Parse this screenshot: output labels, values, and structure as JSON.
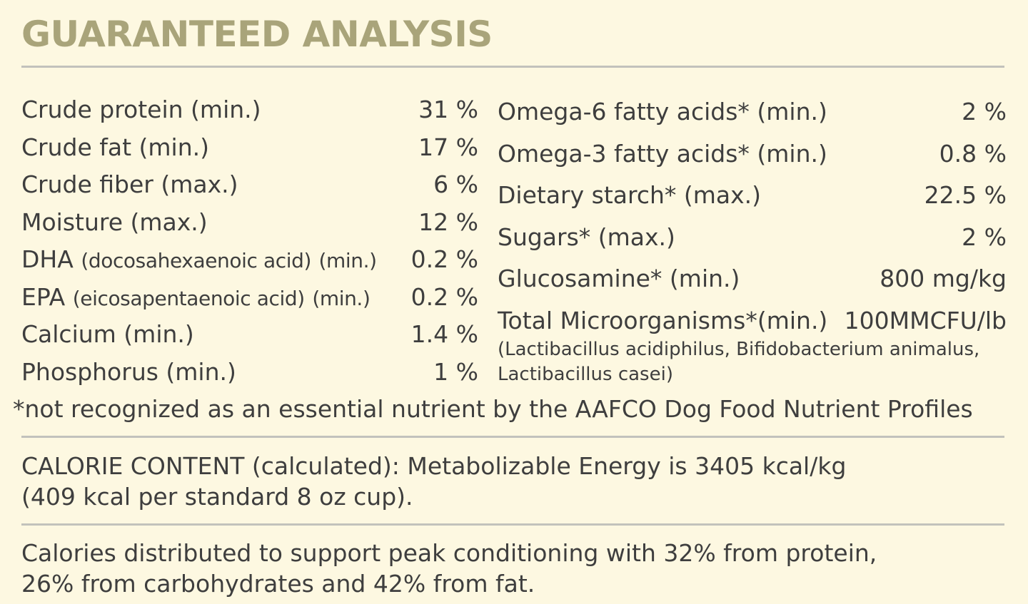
{
  "title": "GUARANTEED ANALYSIS",
  "left_rows": [
    {
      "label": "Crude protein (min.)",
      "value": "31 %"
    },
    {
      "label": "Crude fat (min.)",
      "value": "17 %"
    },
    {
      "label": "Crude fiber (max.)",
      "value": "6 %"
    },
    {
      "label": "Moisture (max.)",
      "value": "12 %"
    },
    {
      "label": "DHA",
      "detail": "(docosahexaenoic acid)",
      "qualifier": "(min.)",
      "value": "0.2 %"
    },
    {
      "label": "EPA",
      "detail": "(eicosapentaenoic acid)",
      "qualifier": "(min.)",
      "value": "0.2 %"
    },
    {
      "label": "Calcium (min.)",
      "value": "1.4 %"
    },
    {
      "label": "Phosphorus (min.)",
      "value": "1 %"
    }
  ],
  "right_rows": [
    {
      "label": "Omega-6 fatty acids* (min.)",
      "value": "2 %"
    },
    {
      "label": "Omega-3 fatty acids* (min.)",
      "value": "0.8 %"
    },
    {
      "label": "Dietary starch* (max.)",
      "value": "22.5 %"
    },
    {
      "label": "Sugars* (max.)",
      "value": "2 %"
    },
    {
      "label": "Glucosamine* (min.)",
      "value": "800 mg/kg"
    },
    {
      "label": "Total Microorganisms*(min.)",
      "value": "100MMCFU/lb"
    }
  ],
  "microorganisms_note": [
    "(Lactibacillus acidiphilus, Bifidobacterium animalus,",
    "Lactibacillus casei)"
  ],
  "footnote": "*not recognized as an essential nutrient by the AAFCO Dog Food Nutrient Profiles",
  "calorie_content": [
    "CALORIE CONTENT (calculated): Metabolizable Energy is 3405 kcal/kg",
    "(409 kcal per standard 8 oz cup)."
  ],
  "distribution": [
    "Calories distributed to support peak conditioning with 32% from protein,",
    "26% from carbohydrates and 42% from fat."
  ],
  "colors": {
    "background": "#fdf8e1",
    "title": "#a9a47a",
    "text": "#3e3e3e",
    "rule": "#c2c2bc"
  }
}
